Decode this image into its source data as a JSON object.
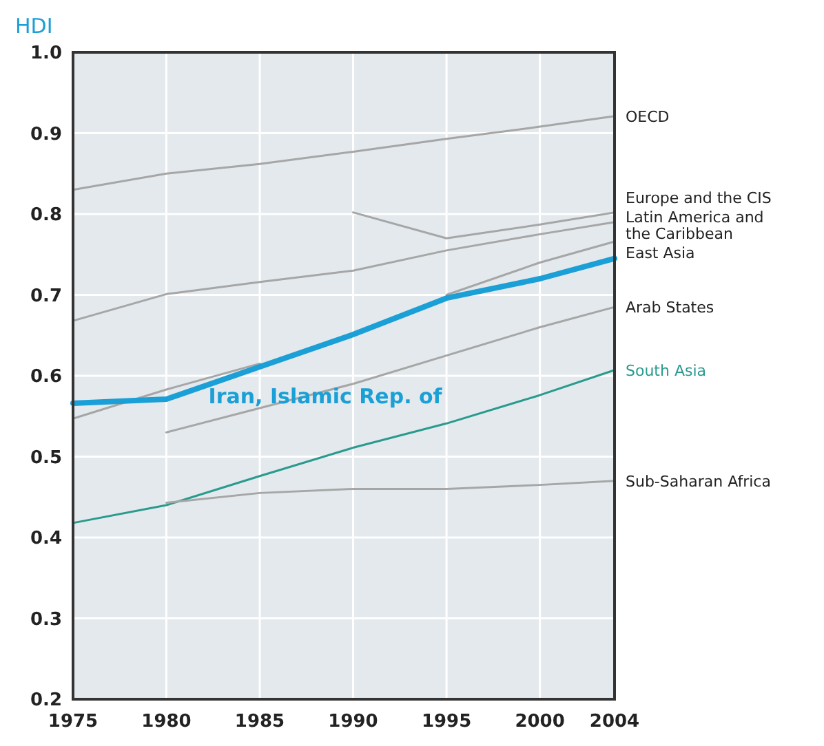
{
  "chart_data": {
    "type": "line",
    "ylabel": "HDI",
    "x": [
      1975,
      1980,
      1985,
      1990,
      1995,
      2000,
      2004
    ],
    "xlim": [
      1975,
      2004
    ],
    "xticks": [
      1975,
      1980,
      1985,
      1990,
      1995,
      2000,
      2004
    ],
    "ylim": [
      0.2,
      1.0
    ],
    "yticks": [
      0.2,
      0.3,
      0.4,
      0.5,
      0.6,
      0.7,
      0.8,
      0.9,
      {
        "value": 1.0,
        "label": "1.0"
      }
    ],
    "grid": true,
    "line_style": "solid",
    "marker": "none",
    "series": [
      {
        "name": "OECD",
        "color": "#a6a6a6",
        "values": [
          0.83,
          0.85,
          0.862,
          0.877,
          0.893,
          0.908,
          0.921
        ]
      },
      {
        "name": "Europe and the CIS",
        "color": "#a6a6a6",
        "values": [
          null,
          null,
          null,
          0.802,
          0.77,
          0.787,
          0.802
        ]
      },
      {
        "name": "Latin America and the Caribbean",
        "color": "#a6a6a6",
        "values": [
          0.668,
          0.701,
          0.716,
          0.73,
          0.755,
          0.775,
          0.79
        ]
      },
      {
        "name": "East Asia",
        "color": "#a6a6a6",
        "values": [
          0.547,
          0.583,
          0.615,
          null,
          0.7,
          0.74,
          0.766
        ]
      },
      {
        "name": "Arab States",
        "color": "#a6a6a6",
        "values": [
          null,
          0.53,
          0.56,
          0.59,
          0.625,
          0.66,
          0.685
        ]
      },
      {
        "name": "South Asia",
        "color": "#2a9a8f",
        "values": [
          0.418,
          0.44,
          0.476,
          0.511,
          0.541,
          0.576,
          0.607
        ]
      },
      {
        "name": "Sub-Saharan Africa",
        "color": "#a6a6a6",
        "values": [
          null,
          0.443,
          0.455,
          0.46,
          0.46,
          0.465,
          0.47
        ]
      },
      {
        "name": "Iran, Islamic Rep. of",
        "color": "#1a9fd6",
        "values": [
          0.566,
          0.571,
          0.611,
          0.651,
          0.696,
          0.72,
          0.745
        ]
      }
    ]
  }
}
